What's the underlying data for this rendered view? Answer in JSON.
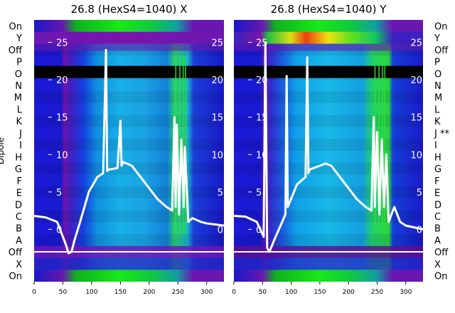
{
  "chart_data": [
    {
      "type": "heatmap",
      "title": "26.8 (HexS4=1040) X",
      "ylabel": "Dipole",
      "xlim": [
        0,
        330
      ],
      "xticks": [
        0,
        50,
        100,
        150,
        200,
        250,
        300
      ],
      "row_labels": [
        "On",
        "Y",
        "Off",
        "P",
        "O",
        "N",
        "M",
        "L",
        "K",
        "J",
        "I",
        "H",
        "G",
        "F",
        "E",
        "D",
        "C",
        "B",
        "A",
        "Off",
        "X",
        "On"
      ],
      "inner_scale": {
        "ticks": [
          25,
          20,
          15,
          10,
          5,
          0
        ],
        "range": [
          -7,
          28
        ]
      },
      "dead_band_at": 21,
      "reference_line_at": -3,
      "overlay_series": [
        {
          "x": [
            0,
            20,
            40,
            55,
            60,
            65,
            70,
            80,
            95,
            110,
            120,
            125,
            127,
            130,
            145,
            150,
            152,
            155,
            170,
            185,
            200,
            215,
            230,
            240,
            244,
            246,
            248,
            252,
            256,
            260,
            262,
            268,
            275,
            290,
            300,
            330
          ],
          "y": [
            1.8,
            1.6,
            1.0,
            -2.0,
            -3.2,
            -3.0,
            -1.5,
            1.0,
            5.0,
            7.0,
            7.5,
            24.0,
            7.8,
            8.0,
            8.2,
            14.5,
            8.5,
            9.0,
            8.5,
            7.0,
            5.5,
            4.0,
            3.0,
            2.5,
            15.0,
            3.0,
            14.0,
            2.0,
            12.0,
            3.0,
            11.0,
            1.0,
            1.5,
            1.0,
            0.8,
            0.5
          ]
        }
      ]
    },
    {
      "type": "heatmap",
      "title": "26.8 (HexS4=1040) Y",
      "ylabel": "",
      "xlim": [
        0,
        330
      ],
      "xticks": [
        0,
        50,
        100,
        150,
        200,
        250,
        300
      ],
      "row_labels": [
        "On",
        "Y",
        "Off",
        "P",
        "O",
        "N",
        "M",
        "L",
        "K",
        "J **",
        "I",
        "H",
        "G",
        "F",
        "E",
        "D",
        "C",
        "B",
        "A",
        "Off",
        "X",
        "On"
      ],
      "inner_scale": {
        "ticks": [
          25,
          20,
          15,
          10,
          5,
          0
        ],
        "range": [
          -7,
          28
        ]
      },
      "dead_band_at": 21,
      "reference_line_at": -3,
      "overlay_series": [
        {
          "x": [
            0,
            20,
            40,
            52,
            55,
            58,
            62,
            70,
            90,
            92,
            94,
            110,
            125,
            128,
            130,
            132,
            150,
            160,
            170,
            185,
            200,
            215,
            230,
            240,
            244,
            246,
            250,
            254,
            258,
            262,
            266,
            270,
            280,
            290,
            300,
            330
          ],
          "y": [
            1.8,
            1.7,
            1.0,
            -1.0,
            25.0,
            -2.5,
            -3.0,
            -1.5,
            2.0,
            20.5,
            3.0,
            6.0,
            7.0,
            23.0,
            7.5,
            8.0,
            8.5,
            8.8,
            8.5,
            7.0,
            5.5,
            4.0,
            3.0,
            2.5,
            15.0,
            3.0,
            13.0,
            2.0,
            12.0,
            3.0,
            10.0,
            1.0,
            3.0,
            1.0,
            0.5,
            0.0
          ]
        }
      ]
    }
  ]
}
